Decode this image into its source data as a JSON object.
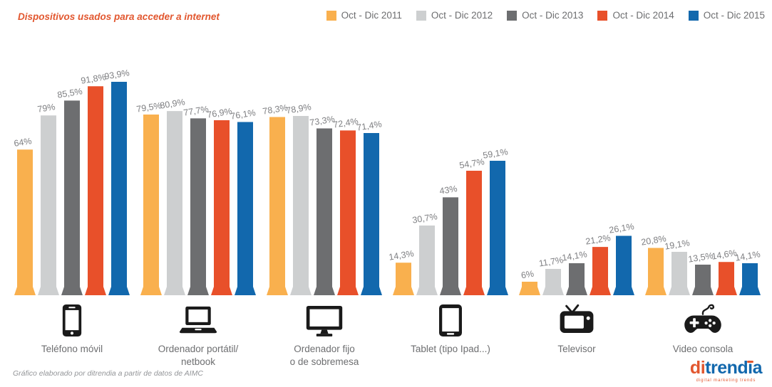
{
  "chart_data": {
    "type": "bar",
    "title": "Dispositivos usados para acceder a internet",
    "xlabel": "",
    "ylabel": "",
    "unit": "%",
    "ylim": [
      0,
      100
    ],
    "grid": false,
    "legend_position": "top-right",
    "categories": [
      "Teléfono móvil",
      "Ordenador portátil/\nnetbook",
      "Ordenador fijo\no de sobremesa",
      "Tablet (tipo Ipad...)",
      "Televisor",
      "Video consola"
    ],
    "category_icons": [
      "smartphone-icon",
      "laptop-icon",
      "desktop-monitor-icon",
      "tablet-icon",
      "tv-icon",
      "game-controller-icon"
    ],
    "series": [
      {
        "name": "Oct - Dic 2011",
        "color": "#F9B04E",
        "values": [
          64,
          79.5,
          78.3,
          14.3,
          6,
          20.8
        ],
        "labels": [
          "64%",
          "79,5%",
          "78,3%",
          "14,3%",
          "6%",
          "20,8%"
        ]
      },
      {
        "name": "Oct - Dic 2012",
        "color": "#CDCFD0",
        "values": [
          79,
          80.9,
          78.9,
          30.7,
          11.7,
          19.1
        ],
        "labels": [
          "79%",
          "80,9%",
          "78,9%",
          "30,7%",
          "11,7%",
          "19,1%"
        ]
      },
      {
        "name": "Oct - Dic 2013",
        "color": "#6D6E70",
        "values": [
          85.5,
          77.7,
          73.3,
          43,
          14.1,
          13.5
        ],
        "labels": [
          "85,5%",
          "77,7%",
          "73,3%",
          "43%",
          "14,1%",
          "13,5%"
        ]
      },
      {
        "name": "Oct - Dic 2014",
        "color": "#E8502A",
        "values": [
          91.8,
          76.9,
          72.4,
          54.7,
          21.2,
          14.6
        ],
        "labels": [
          "91,8%",
          "76,9%",
          "72,4%",
          "54,7%",
          "21,2%",
          "14,6%"
        ]
      },
      {
        "name": "Oct - Dic 2015",
        "color": "#1268AD",
        "values": [
          93.9,
          76.1,
          71.4,
          59.1,
          26.1,
          14.1
        ],
        "labels": [
          "93,9%",
          "76,1%",
          "71,4%",
          "59,1%",
          "26,1%",
          "14,1%"
        ]
      }
    ]
  },
  "footer": {
    "source_note": "Gráfico elaborado por ditrendia a partir de datos de AIMC",
    "logo": {
      "part_di": "di",
      "part_trend": "trend",
      "part_i": "i",
      "part_a": "a",
      "tagline": "digital marketing trends"
    }
  }
}
